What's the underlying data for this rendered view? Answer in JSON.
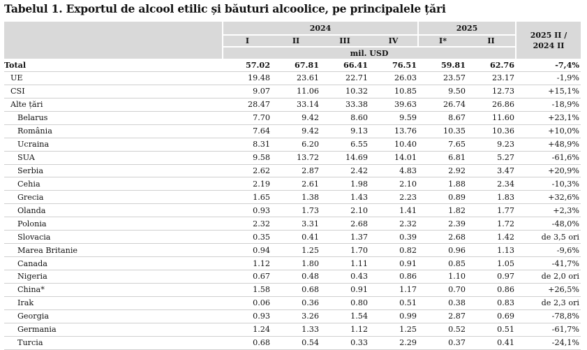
{
  "title": "Tabelul 1. Exportul de alcool etilic și băuturi alcoolice, pe principalele țări",
  "header": {
    "year_2024": "2024",
    "year_2025": "2025",
    "quarters_2024": [
      "I",
      "II",
      "III",
      "IV"
    ],
    "quarters_2025": [
      "I*",
      "II"
    ],
    "unit": "mil. USD",
    "change_line1": "2025 II /",
    "change_line2": "2024 II"
  },
  "rows": [
    {
      "label": "Total",
      "v": [
        "57.02",
        "67.81",
        "66.41",
        "76.51",
        "59.81",
        "62.76"
      ],
      "chg": "-7,4%"
    },
    {
      "label": "UE",
      "v": [
        "19.48",
        "23.61",
        "22.71",
        "26.03",
        "23.57",
        "23.17"
      ],
      "chg": "-1,9%"
    },
    {
      "label": "CSI",
      "v": [
        "9.07",
        "11.06",
        "10.32",
        "10.85",
        "9.50",
        "12.73"
      ],
      "chg": "+15,1%"
    },
    {
      "label": "Alte țări",
      "v": [
        "28.47",
        "33.14",
        "33.38",
        "39.63",
        "26.74",
        "26.86"
      ],
      "chg": "-18,9%"
    },
    {
      "label": "Belarus",
      "v": [
        "7.70",
        "9.42",
        "8.60",
        "9.59",
        "8.67",
        "11.60"
      ],
      "chg": "+23,1%"
    },
    {
      "label": "România",
      "v": [
        "7.64",
        "9.42",
        "9.13",
        "13.76",
        "10.35",
        "10.36"
      ],
      "chg": "+10,0%"
    },
    {
      "label": "Ucraina",
      "v": [
        "8.31",
        "6.20",
        "6.55",
        "10.40",
        "7.65",
        "9.23"
      ],
      "chg": "+48,9%"
    },
    {
      "label": "SUA",
      "v": [
        "9.58",
        "13.72",
        "14.69",
        "14.01",
        "6.81",
        "5.27"
      ],
      "chg": "-61,6%"
    },
    {
      "label": "Serbia",
      "v": [
        "2.62",
        "2.87",
        "2.42",
        "4.83",
        "2.92",
        "3.47"
      ],
      "chg": "+20,9%"
    },
    {
      "label": "Cehia",
      "v": [
        "2.19",
        "2.61",
        "1.98",
        "2.10",
        "1.88",
        "2.34"
      ],
      "chg": "-10,3%"
    },
    {
      "label": "Grecia",
      "v": [
        "1.65",
        "1.38",
        "1.43",
        "2.23",
        "0.89",
        "1.83"
      ],
      "chg": "+32,6%"
    },
    {
      "label": "Olanda",
      "v": [
        "0.93",
        "1.73",
        "2.10",
        "1.41",
        "1.82",
        "1.77"
      ],
      "chg": "+2,3%"
    },
    {
      "label": "Polonia",
      "v": [
        "2.32",
        "3.31",
        "2.68",
        "2.32",
        "2.39",
        "1.72"
      ],
      "chg": "-48,0%"
    },
    {
      "label": "Slovacia",
      "v": [
        "0.35",
        "0.41",
        "1.37",
        "0.39",
        "2.68",
        "1.42"
      ],
      "chg": "de 3,5 ori"
    },
    {
      "label": "Marea Britanie",
      "v": [
        "0.94",
        "1.25",
        "1.70",
        "0.82",
        "0.96",
        "1.13"
      ],
      "chg": "-9,6%"
    },
    {
      "label": "Canada",
      "v": [
        "1.12",
        "1.80",
        "1.11",
        "0.91",
        "0.85",
        "1.05"
      ],
      "chg": "-41,7%"
    },
    {
      "label": "Nigeria",
      "v": [
        "0.67",
        "0.48",
        "0.43",
        "0.86",
        "1.10",
        "0.97"
      ],
      "chg": "de 2,0 ori"
    },
    {
      "label": "China*",
      "v": [
        "1.58",
        "0.68",
        "0.91",
        "1.17",
        "0.70",
        "0.86"
      ],
      "chg": "+26,5%"
    },
    {
      "label": "Irak",
      "v": [
        "0.06",
        "0.36",
        "0.80",
        "0.51",
        "0.38",
        "0.83"
      ],
      "chg": "de 2,3 ori"
    },
    {
      "label": "Georgia",
      "v": [
        "0.93",
        "3.26",
        "1.54",
        "0.99",
        "2.87",
        "0.69"
      ],
      "chg": "-78,8%"
    },
    {
      "label": "Germania",
      "v": [
        "1.24",
        "1.33",
        "1.12",
        "1.25",
        "0.52",
        "0.51"
      ],
      "chg": "-61,7%"
    },
    {
      "label": "Turcia",
      "v": [
        "0.68",
        "0.54",
        "0.33",
        "2.29",
        "0.37",
        "0.41"
      ],
      "chg": "-24,1%"
    }
  ]
}
